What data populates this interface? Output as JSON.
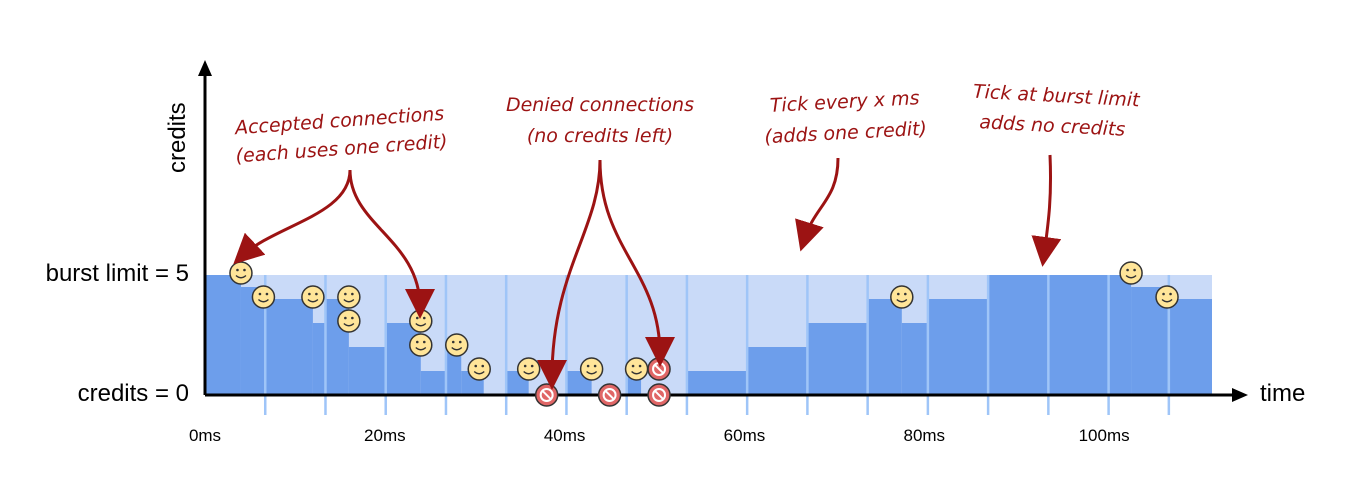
{
  "labels": {
    "y_axis": "credits",
    "x_axis": "time",
    "burst_limit": "burst limit = 5",
    "credits_zero": "credits = 0"
  },
  "ticks": [
    "0ms",
    "20ms",
    "40ms",
    "60ms",
    "80ms",
    "100ms"
  ],
  "annotations": {
    "accepted_line1": "Accepted connections",
    "accepted_line2": "(each uses one credit)",
    "denied_line1": "Denied connections",
    "denied_line2": "(no credits left)",
    "tick_line1": "Tick every x ms",
    "tick_line2": "(adds one credit)",
    "burst_line1": "Tick at burst limit",
    "burst_line2": "adds no credits"
  },
  "colors": {
    "credit_fill": "#6d9eeb",
    "limit_band": "#c9daf8",
    "tick_line": "#9fc5f8",
    "annotation": "#9c1313",
    "smiley": "#ffe599",
    "denied": "#e06666"
  },
  "chart_data": {
    "type": "area",
    "x_unit": "ms",
    "x_range": [
      0,
      112
    ],
    "y_range": [
      0,
      5
    ],
    "burst_limit": 5,
    "tick_interval_ms": 6.7,
    "credits_steps": [
      {
        "from": 0,
        "to": 4,
        "credits": 5
      },
      {
        "from": 4,
        "to": 6.7,
        "credits": 4.5
      },
      {
        "from": 6.7,
        "to": 12,
        "credits": 4
      },
      {
        "from": 12,
        "to": 13.4,
        "credits": 3
      },
      {
        "from": 13.4,
        "to": 16,
        "credits": 4
      },
      {
        "from": 16,
        "to": 20,
        "credits": 2
      },
      {
        "from": 20,
        "to": 24,
        "credits": 3
      },
      {
        "from": 24,
        "to": 26.8,
        "credits": 1
      },
      {
        "from": 26.8,
        "to": 28.5,
        "credits": 2
      },
      {
        "from": 28.5,
        "to": 31,
        "credits": 1
      },
      {
        "from": 31,
        "to": 33.5,
        "credits": 0
      },
      {
        "from": 33.5,
        "to": 36,
        "credits": 1
      },
      {
        "from": 36,
        "to": 40.2,
        "credits": 0
      },
      {
        "from": 40.2,
        "to": 43,
        "credits": 1
      },
      {
        "from": 43,
        "to": 46.9,
        "credits": 0
      },
      {
        "from": 46.9,
        "to": 48.5,
        "credits": 1
      },
      {
        "from": 48.5,
        "to": 53.6,
        "credits": 0
      },
      {
        "from": 53.6,
        "to": 60.3,
        "credits": 1
      },
      {
        "from": 60.3,
        "to": 67,
        "credits": 2
      },
      {
        "from": 67,
        "to": 73.7,
        "credits": 3
      },
      {
        "from": 73.7,
        "to": 77.5,
        "credits": 4
      },
      {
        "from": 77.5,
        "to": 80.4,
        "credits": 3
      },
      {
        "from": 80.4,
        "to": 87.1,
        "credits": 4
      },
      {
        "from": 87.1,
        "to": 103,
        "credits": 5
      },
      {
        "from": 103,
        "to": 107,
        "credits": 4.5
      },
      {
        "from": 107,
        "to": 112,
        "credits": 4
      }
    ],
    "accepted_connections": [
      {
        "t": 4,
        "level": 5
      },
      {
        "t": 6.5,
        "level": 4
      },
      {
        "t": 12,
        "level": 4
      },
      {
        "t": 16,
        "level": 4
      },
      {
        "t": 16,
        "level": 3
      },
      {
        "t": 24,
        "level": 3
      },
      {
        "t": 24,
        "level": 2
      },
      {
        "t": 28,
        "level": 2
      },
      {
        "t": 30.5,
        "level": 1
      },
      {
        "t": 36,
        "level": 1
      },
      {
        "t": 43,
        "level": 1
      },
      {
        "t": 48,
        "level": 1
      },
      {
        "t": 77.5,
        "level": 4
      },
      {
        "t": 103,
        "level": 5
      },
      {
        "t": 107,
        "level": 4
      }
    ],
    "denied_connections": [
      {
        "t": 38,
        "level": 0
      },
      {
        "t": 45,
        "level": 0
      },
      {
        "t": 50.5,
        "level": 0
      },
      {
        "t": 50.5,
        "level": 1
      }
    ]
  }
}
